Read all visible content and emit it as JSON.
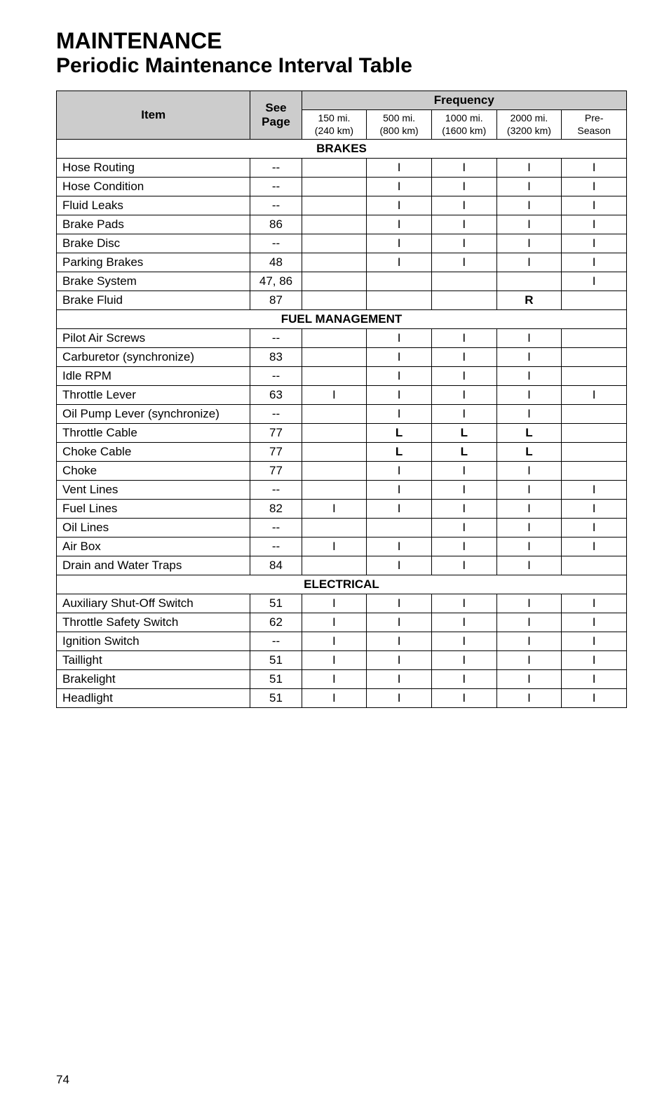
{
  "title_main": "MAINTENANCE",
  "title_sub": "Periodic Maintenance Interval Table",
  "headers": {
    "item": "Item",
    "see_page": "See Page",
    "frequency": "Frequency",
    "f150_a": "150 mi.",
    "f150_b": "(240 km)",
    "f500_a": "500 mi.",
    "f500_b": "(800 km)",
    "f1000_a": "1000 mi.",
    "f1000_b": "(1600 km)",
    "f2000_a": "2000 mi.",
    "f2000_b": "(3200 km)",
    "fpre_a": "Pre-",
    "fpre_b": "Season"
  },
  "sections": {
    "brakes": "BRAKES",
    "fuel": "FUEL MANAGEMENT",
    "electrical": "ELECTRICAL"
  },
  "rows": {
    "hose_routing": {
      "item": "Hose Routing",
      "page": "--",
      "v": [
        "",
        "I",
        "I",
        "I",
        "I"
      ]
    },
    "hose_condition": {
      "item": "Hose Condition",
      "page": "--",
      "v": [
        "",
        "I",
        "I",
        "I",
        "I"
      ]
    },
    "fluid_leaks": {
      "item": "Fluid Leaks",
      "page": "--",
      "v": [
        "",
        "I",
        "I",
        "I",
        "I"
      ]
    },
    "brake_pads": {
      "item": "Brake Pads",
      "page": "86",
      "v": [
        "",
        "I",
        "I",
        "I",
        "I"
      ]
    },
    "brake_disc": {
      "item": "Brake Disc",
      "page": "--",
      "v": [
        "",
        "I",
        "I",
        "I",
        "I"
      ]
    },
    "parking_brakes": {
      "item": "Parking Brakes",
      "page": "48",
      "v": [
        "",
        "I",
        "I",
        "I",
        "I"
      ]
    },
    "brake_system": {
      "item": "Brake System",
      "page": "47, 86",
      "v": [
        "",
        "",
        "",
        "",
        "I"
      ]
    },
    "brake_fluid": {
      "item": "Brake Fluid",
      "page": "87",
      "v": [
        "",
        "",
        "",
        "R",
        ""
      ]
    },
    "pilot_air": {
      "item": "Pilot Air Screws",
      "page": "--",
      "v": [
        "",
        "I",
        "I",
        "I",
        ""
      ]
    },
    "carburetor": {
      "item": "Carburetor (synchronize)",
      "page": "83",
      "v": [
        "",
        "I",
        "I",
        "I",
        ""
      ]
    },
    "idle_rpm": {
      "item": "Idle RPM",
      "page": "--",
      "v": [
        "",
        "I",
        "I",
        "I",
        ""
      ]
    },
    "throttle_lever": {
      "item": "Throttle Lever",
      "page": "63",
      "v": [
        "I",
        "I",
        "I",
        "I",
        "I"
      ]
    },
    "oil_pump": {
      "item": "Oil Pump Lever (synchronize)",
      "page": "--",
      "v": [
        "",
        "I",
        "I",
        "I",
        ""
      ]
    },
    "throttle_cable": {
      "item": "Throttle Cable",
      "page": "77",
      "v": [
        "",
        "L",
        "L",
        "L",
        ""
      ]
    },
    "choke_cable": {
      "item": "Choke Cable",
      "page": "77",
      "v": [
        "",
        "L",
        "L",
        "L",
        ""
      ]
    },
    "choke": {
      "item": "Choke",
      "page": "77",
      "v": [
        "",
        "I",
        "I",
        "I",
        ""
      ]
    },
    "vent_lines": {
      "item": "Vent Lines",
      "page": "--",
      "v": [
        "",
        "I",
        "I",
        "I",
        "I"
      ]
    },
    "fuel_lines": {
      "item": "Fuel Lines",
      "page": "82",
      "v": [
        "I",
        "I",
        "I",
        "I",
        "I"
      ]
    },
    "oil_lines": {
      "item": "Oil Lines",
      "page": "--",
      "v": [
        "",
        "",
        "I",
        "I",
        "I"
      ]
    },
    "air_box": {
      "item": "Air Box",
      "page": "--",
      "v": [
        "I",
        "I",
        "I",
        "I",
        "I"
      ]
    },
    "drain_water": {
      "item": "Drain and Water Traps",
      "page": "84",
      "v": [
        "",
        "I",
        "I",
        "I",
        ""
      ]
    },
    "aux_shutoff": {
      "item": "Auxiliary Shut-Off Switch",
      "page": "51",
      "v": [
        "I",
        "I",
        "I",
        "I",
        "I"
      ]
    },
    "throttle_safety": {
      "item": "Throttle Safety Switch",
      "page": "62",
      "v": [
        "I",
        "I",
        "I",
        "I",
        "I"
      ]
    },
    "ignition": {
      "item": "Ignition Switch",
      "page": "--",
      "v": [
        "I",
        "I",
        "I",
        "I",
        "I"
      ]
    },
    "taillight": {
      "item": "Taillight",
      "page": "51",
      "v": [
        "I",
        "I",
        "I",
        "I",
        "I"
      ]
    },
    "brakelight": {
      "item": "Brakelight",
      "page": "51",
      "v": [
        "I",
        "I",
        "I",
        "I",
        "I"
      ]
    },
    "headlight": {
      "item": "Headlight",
      "page": "51",
      "v": [
        "I",
        "I",
        "I",
        "I",
        "I"
      ]
    }
  },
  "page_number": "74"
}
